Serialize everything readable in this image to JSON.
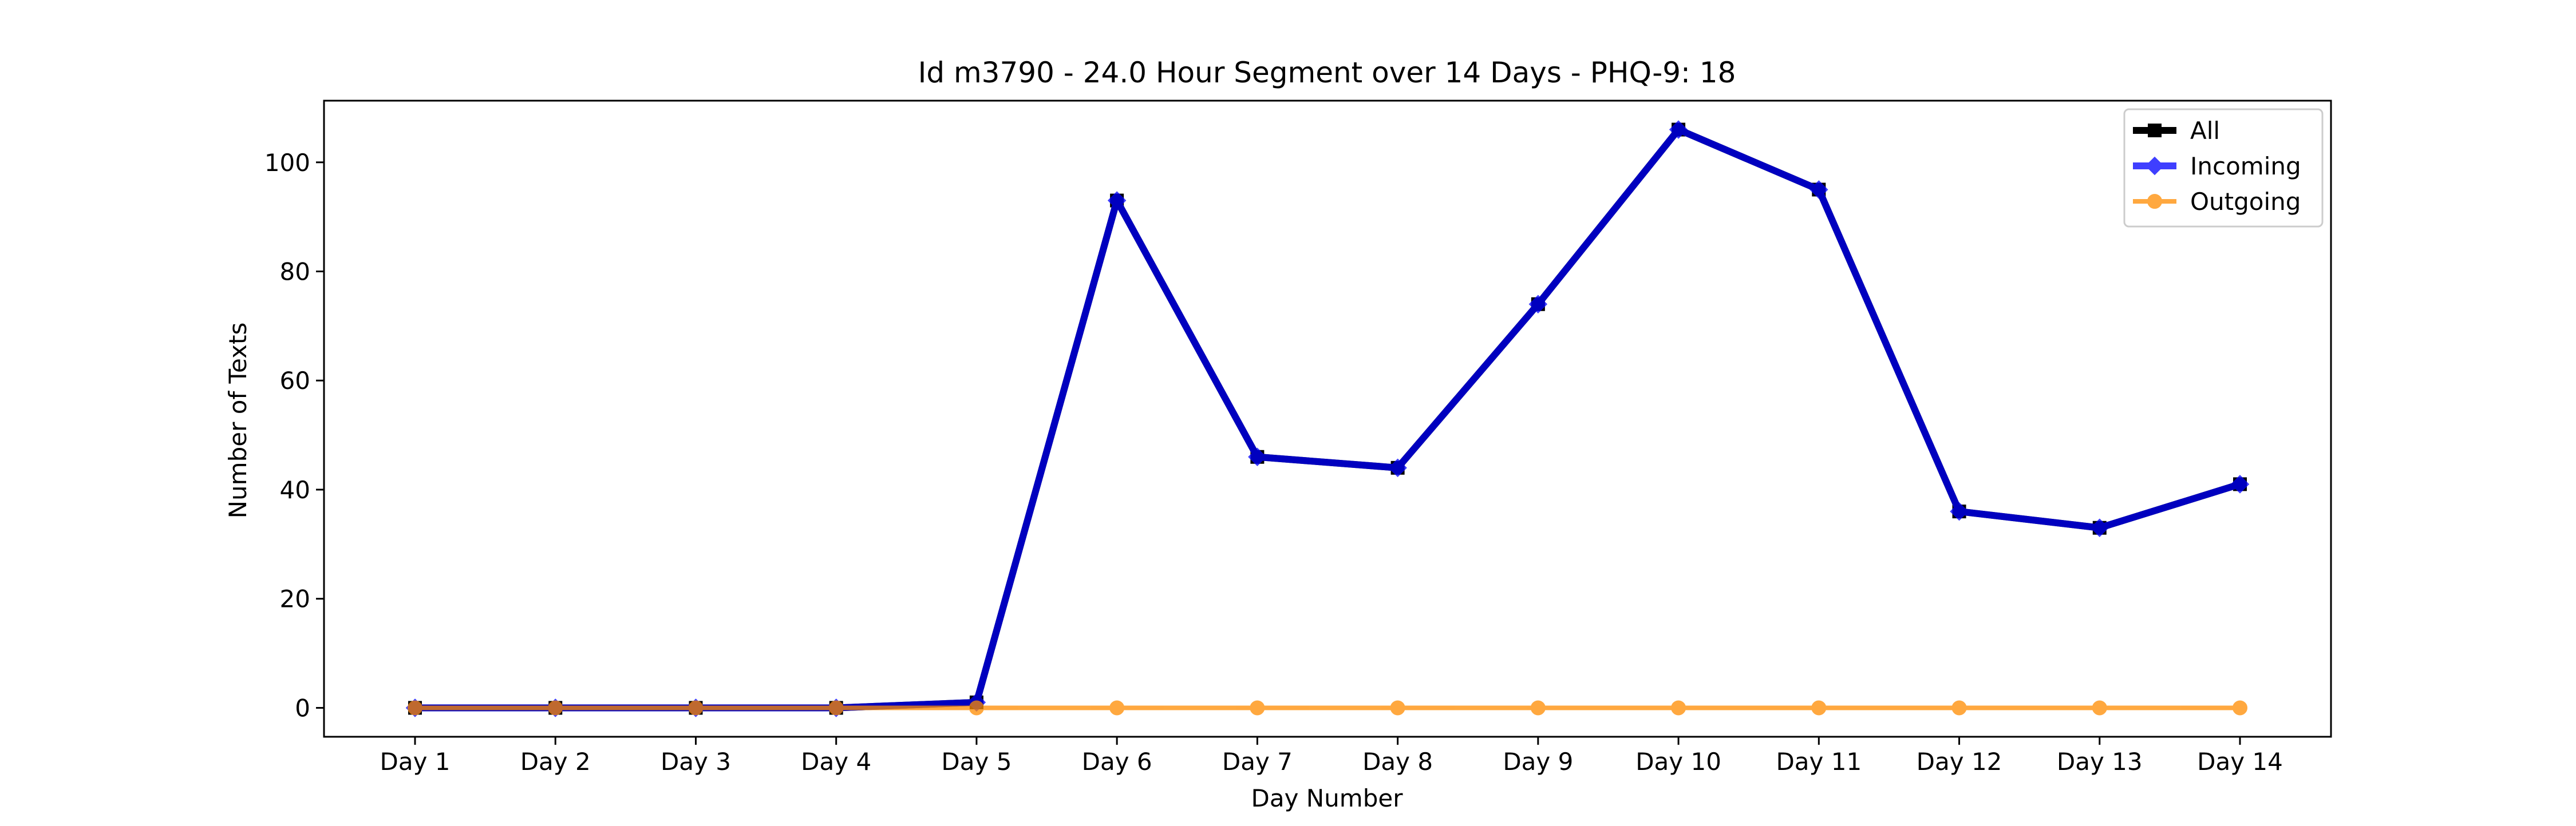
{
  "chart_data": {
    "type": "line",
    "title": "Id m3790 - 24.0 Hour Segment over 14 Days - PHQ-9: 18",
    "xlabel": "Day Number",
    "ylabel": "Number of Texts",
    "categories": [
      "Day 1",
      "Day 2",
      "Day 3",
      "Day 4",
      "Day 5",
      "Day 6",
      "Day 7",
      "Day 8",
      "Day 9",
      "Day 10",
      "Day 11",
      "Day 12",
      "Day 13",
      "Day 14"
    ],
    "ylim": [
      -5.3,
      111.3
    ],
    "yticks": [
      0,
      20,
      40,
      60,
      80,
      100
    ],
    "grid": false,
    "legend_position": "top-right",
    "series": [
      {
        "name": "All",
        "color": "#000000",
        "marker": "square",
        "values": [
          0,
          0,
          0,
          0,
          1,
          93,
          46,
          44,
          74,
          106,
          95,
          36,
          33,
          41
        ]
      },
      {
        "name": "Incoming",
        "color": "#0000ff",
        "marker": "diamond",
        "values": [
          0,
          0,
          0,
          0,
          1,
          93,
          46,
          44,
          74,
          106,
          95,
          36,
          33,
          41
        ]
      },
      {
        "name": "Outgoing",
        "color": "#ff8c00",
        "marker": "circle",
        "values": [
          0,
          0,
          0,
          0,
          0,
          0,
          0,
          0,
          0,
          0,
          0,
          0,
          0,
          0
        ]
      }
    ]
  }
}
